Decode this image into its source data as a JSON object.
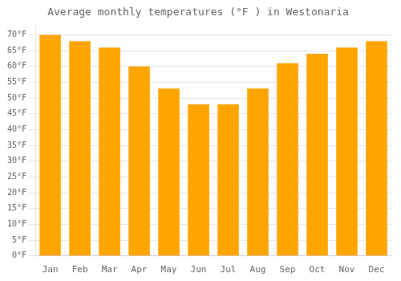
{
  "chart_data": {
    "type": "bar",
    "title": "Average monthly temperatures (°F ) in Westonaria",
    "categories": [
      "Jan",
      "Feb",
      "Mar",
      "Apr",
      "May",
      "Jun",
      "Jul",
      "Aug",
      "Sep",
      "Oct",
      "Nov",
      "Dec"
    ],
    "values": [
      70,
      68,
      66,
      60,
      53,
      48,
      48,
      53,
      61,
      64,
      66,
      68
    ],
    "color": "#FFA500",
    "ylim": [
      0,
      73
    ],
    "yticks": [
      {
        "value": 0,
        "label": "0°F"
      },
      {
        "value": 5,
        "label": "5°F"
      },
      {
        "value": 10,
        "label": "10°F"
      },
      {
        "value": 15,
        "label": "15°F"
      },
      {
        "value": 20,
        "label": "20°F"
      },
      {
        "value": 25,
        "label": "25°F"
      },
      {
        "value": 30,
        "label": "30°F"
      },
      {
        "value": 35,
        "label": "35°F"
      },
      {
        "value": 40,
        "label": "40°F"
      },
      {
        "value": 45,
        "label": "45°F"
      },
      {
        "value": 50,
        "label": "50°F"
      },
      {
        "value": 55,
        "label": "55°F"
      },
      {
        "value": 60,
        "label": "60°F"
      },
      {
        "value": 65,
        "label": "65°F"
      },
      {
        "value": 70,
        "label": "70°F"
      }
    ],
    "grid": true
  }
}
